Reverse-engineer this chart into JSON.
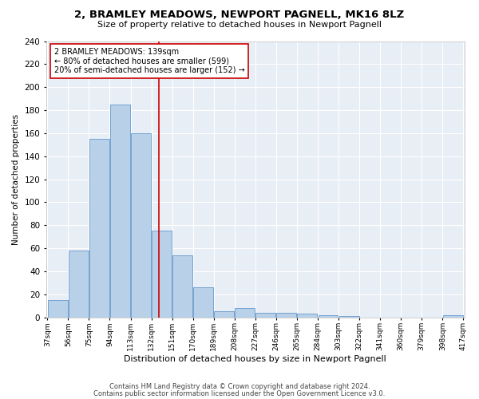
{
  "title": "2, BRAMLEY MEADOWS, NEWPORT PAGNELL, MK16 8LZ",
  "subtitle": "Size of property relative to detached houses in Newport Pagnell",
  "xlabel": "Distribution of detached houses by size in Newport Pagnell",
  "ylabel": "Number of detached properties",
  "bar_color": "#b8d0e8",
  "bar_edge_color": "#6699cc",
  "bg_color": "#e8eef5",
  "grid_color": "#ffffff",
  "vline_x": 139,
  "vline_color": "#cc0000",
  "bin_edges": [
    37,
    56,
    75,
    94,
    113,
    132,
    151,
    170,
    189,
    208,
    227,
    246,
    265,
    284,
    303,
    322,
    341,
    360,
    379,
    398,
    417
  ],
  "bar_heights": [
    15,
    58,
    155,
    185,
    160,
    75,
    54,
    26,
    5,
    8,
    4,
    4,
    3,
    2,
    1,
    0,
    0,
    0,
    0,
    2
  ],
  "annotation_text": "2 BRAMLEY MEADOWS: 139sqm\n← 80% of detached houses are smaller (599)\n20% of semi-detached houses are larger (152) →",
  "annotation_box_color": "#ffffff",
  "annotation_box_edge": "#cc0000",
  "ylim": [
    0,
    240
  ],
  "yticks": [
    0,
    20,
    40,
    60,
    80,
    100,
    120,
    140,
    160,
    180,
    200,
    220,
    240
  ],
  "footer1": "Contains HM Land Registry data © Crown copyright and database right 2024.",
  "footer2": "Contains public sector information licensed under the Open Government Licence v3.0.",
  "fig_width": 6.0,
  "fig_height": 5.0,
  "dpi": 100
}
